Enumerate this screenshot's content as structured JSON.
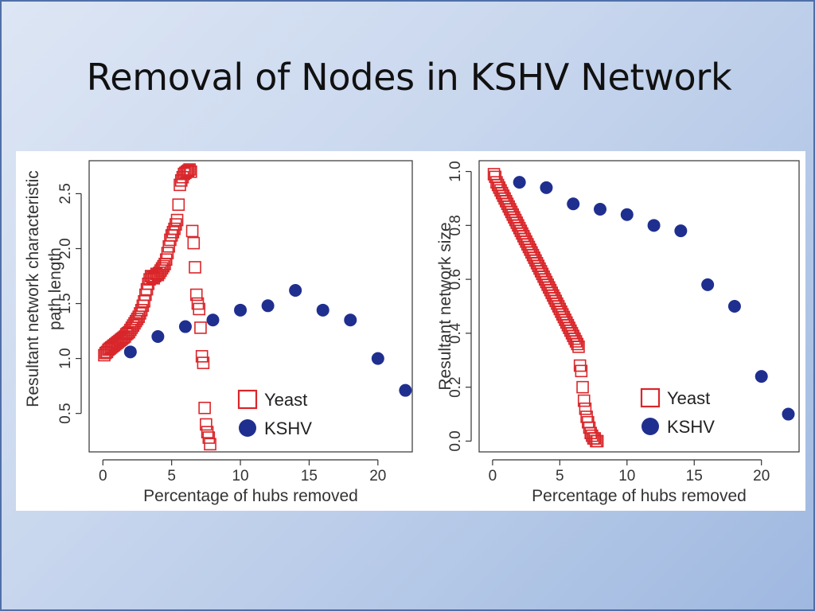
{
  "slide": {
    "title": "Removal of Nodes in KSHV Network"
  },
  "colors": {
    "yeast": "#d9262a",
    "kshv": "#1f2f8f",
    "axis": "#333333"
  },
  "chart_data": [
    {
      "type": "scatter",
      "title": "",
      "xlabel": "Percentage of hubs removed",
      "ylabel_lines": [
        "Resultant network characteristic",
        "path length"
      ],
      "xlim": [
        -1,
        22.5
      ],
      "ylim": [
        0.15,
        2.8
      ],
      "xticks": [
        0,
        5,
        10,
        15,
        20
      ],
      "yticks": [
        0.5,
        1.0,
        1.5,
        2.0,
        2.5
      ],
      "ytick_labels": [
        "0.5",
        "1.0",
        "1.5",
        "2.0",
        "2.5"
      ],
      "legend": {
        "placement": "bottom-right",
        "entries": [
          "Yeast",
          "KSHV"
        ]
      },
      "series": [
        {
          "name": "Yeast",
          "marker": "open-square",
          "x": [
            0.1,
            0.2,
            0.3,
            0.4,
            0.5,
            0.6,
            0.7,
            0.8,
            0.9,
            1.0,
            1.1,
            1.2,
            1.3,
            1.4,
            1.5,
            1.6,
            1.7,
            1.8,
            1.9,
            2.0,
            2.1,
            2.2,
            2.3,
            2.4,
            2.5,
            2.6,
            2.7,
            2.8,
            2.9,
            3.0,
            3.1,
            3.2,
            3.3,
            3.4,
            3.5,
            3.6,
            3.7,
            3.8,
            3.9,
            4.0,
            4.1,
            4.2,
            4.3,
            4.4,
            4.5,
            4.6,
            4.7,
            4.8,
            4.9,
            5.0,
            5.1,
            5.2,
            5.3,
            5.4,
            5.5,
            5.6,
            5.7,
            5.8,
            5.9,
            6.0,
            6.1,
            6.2,
            6.3,
            6.4,
            6.5,
            6.6,
            6.7,
            6.8,
            6.9,
            7.0,
            7.1,
            7.2,
            7.3,
            7.4,
            7.5,
            7.6,
            7.7,
            7.8
          ],
          "y": [
            1.03,
            1.05,
            1.06,
            1.08,
            1.09,
            1.1,
            1.11,
            1.12,
            1.13,
            1.14,
            1.15,
            1.16,
            1.17,
            1.18,
            1.19,
            1.2,
            1.22,
            1.23,
            1.24,
            1.26,
            1.28,
            1.3,
            1.32,
            1.34,
            1.36,
            1.38,
            1.41,
            1.44,
            1.48,
            1.52,
            1.58,
            1.63,
            1.68,
            1.72,
            1.75,
            1.74,
            1.73,
            1.75,
            1.77,
            1.76,
            1.78,
            1.8,
            1.82,
            1.84,
            1.86,
            1.9,
            1.96,
            2.02,
            2.08,
            2.12,
            2.15,
            2.18,
            2.22,
            2.26,
            2.4,
            2.58,
            2.62,
            2.65,
            2.68,
            2.69,
            2.7,
            2.71,
            2.72,
            2.7,
            2.16,
            2.05,
            1.83,
            1.58,
            1.5,
            1.45,
            1.28,
            1.02,
            0.96,
            0.55,
            0.4,
            0.33,
            0.28,
            0.22
          ]
        },
        {
          "name": "KSHV",
          "marker": "filled-circle",
          "x": [
            2,
            4,
            6,
            8,
            10,
            12,
            14,
            16,
            18,
            20,
            22
          ],
          "y": [
            1.06,
            1.2,
            1.29,
            1.35,
            1.44,
            1.48,
            1.62,
            1.44,
            1.35,
            1.0,
            0.71
          ]
        }
      ]
    },
    {
      "type": "scatter",
      "title": "",
      "xlabel": "Percentage of hubs removed",
      "ylabel_lines": [
        "Resultant network size"
      ],
      "xlim": [
        -1,
        22.8
      ],
      "ylim": [
        -0.04,
        1.04
      ],
      "xticks": [
        0,
        5,
        10,
        15,
        20
      ],
      "yticks": [
        0.0,
        0.2,
        0.4,
        0.6,
        0.8,
        1.0
      ],
      "ytick_labels": [
        "0.0",
        "0.2",
        "0.4",
        "0.6",
        "0.8",
        "1.0"
      ],
      "legend": {
        "placement": "bottom-right",
        "entries": [
          "Yeast",
          "KSHV"
        ]
      },
      "series": [
        {
          "name": "Yeast",
          "marker": "open-square",
          "x": [
            0.1,
            0.2,
            0.3,
            0.4,
            0.5,
            0.6,
            0.7,
            0.8,
            0.9,
            1.0,
            1.1,
            1.2,
            1.3,
            1.4,
            1.5,
            1.6,
            1.7,
            1.8,
            1.9,
            2.0,
            2.1,
            2.2,
            2.3,
            2.4,
            2.5,
            2.6,
            2.7,
            2.8,
            2.9,
            3.0,
            3.1,
            3.2,
            3.3,
            3.4,
            3.5,
            3.6,
            3.7,
            3.8,
            3.9,
            4.0,
            4.1,
            4.2,
            4.3,
            4.4,
            4.5,
            4.6,
            4.7,
            4.8,
            4.9,
            5.0,
            5.1,
            5.2,
            5.3,
            5.4,
            5.5,
            5.6,
            5.7,
            5.8,
            5.9,
            6.0,
            6.1,
            6.2,
            6.3,
            6.4,
            6.5,
            6.6,
            6.7,
            6.8,
            6.9,
            7.0,
            7.1,
            7.2,
            7.3,
            7.4,
            7.5,
            7.6,
            7.7,
            7.8
          ],
          "y": [
            0.99,
            0.98,
            0.96,
            0.95,
            0.94,
            0.93,
            0.92,
            0.91,
            0.9,
            0.89,
            0.88,
            0.87,
            0.86,
            0.85,
            0.84,
            0.83,
            0.82,
            0.81,
            0.8,
            0.79,
            0.78,
            0.77,
            0.76,
            0.75,
            0.74,
            0.73,
            0.72,
            0.71,
            0.7,
            0.69,
            0.68,
            0.67,
            0.66,
            0.65,
            0.64,
            0.63,
            0.62,
            0.61,
            0.6,
            0.59,
            0.58,
            0.57,
            0.56,
            0.55,
            0.54,
            0.53,
            0.52,
            0.51,
            0.5,
            0.49,
            0.48,
            0.47,
            0.46,
            0.45,
            0.44,
            0.43,
            0.42,
            0.41,
            0.4,
            0.39,
            0.38,
            0.37,
            0.36,
            0.35,
            0.28,
            0.26,
            0.2,
            0.15,
            0.12,
            0.09,
            0.07,
            0.05,
            0.03,
            0.02,
            0.01,
            0.01,
            0.0,
            0.0
          ]
        },
        {
          "name": "KSHV",
          "marker": "filled-circle",
          "x": [
            2,
            4,
            6,
            8,
            10,
            12,
            14,
            16,
            18,
            20,
            22
          ],
          "y": [
            0.96,
            0.94,
            0.88,
            0.86,
            0.84,
            0.8,
            0.78,
            0.58,
            0.5,
            0.24,
            0.1
          ]
        }
      ]
    }
  ]
}
